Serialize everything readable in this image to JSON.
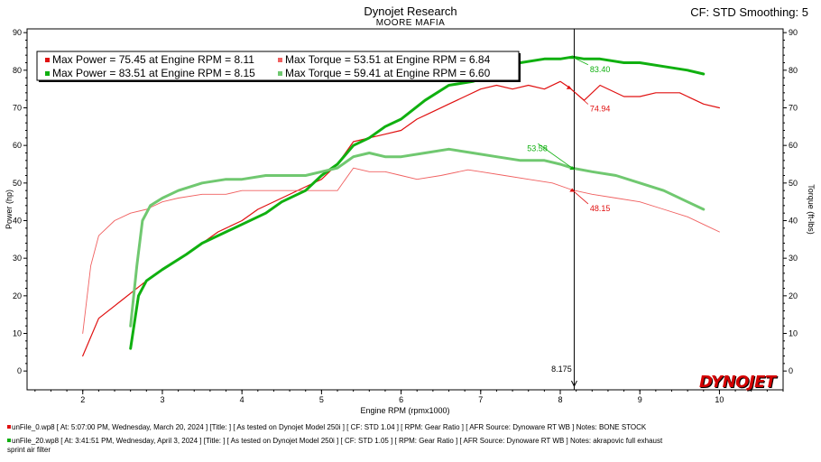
{
  "header": {
    "title": "Dynojet Research",
    "subtitle": "MOORE MAFIA",
    "cf": "CF: STD Smoothing: 5"
  },
  "colors": {
    "run1": "#e01010",
    "run1_torque": "#f06060",
    "run2": "#10b010",
    "run2_torque": "#70c870"
  },
  "chart_data": {
    "type": "line",
    "xlabel": "Engine RPM (rpmx1000)",
    "ylabel_left": "Power (hp)",
    "ylabel_right": "Torque (ft-lbs)",
    "xlim": [
      1.3,
      10.8
    ],
    "ylim": [
      -5,
      91
    ],
    "x_ticks": [
      "2",
      "3",
      "4",
      "5",
      "6",
      "7",
      "8",
      "9",
      "10"
    ],
    "y_ticks": [
      "0",
      "10",
      "20",
      "30",
      "40",
      "50",
      "60",
      "70",
      "80",
      "90"
    ],
    "grid": false,
    "legend": [
      {
        "text": "Max Power = 75.45 at Engine RPM = 8.11",
        "color": "#e01010",
        "bold": false
      },
      {
        "text": "Max Torque = 53.51 at Engine RPM = 6.84",
        "color": "#f06060",
        "bold": false
      },
      {
        "text": "Max Power = 83.51 at Engine RPM = 8.15",
        "color": "#10b010",
        "bold": true
      },
      {
        "text": "Max Torque = 59.41 at Engine RPM = 6.60",
        "color": "#70c870",
        "bold": true
      }
    ],
    "series": [
      {
        "name": "Power",
        "file": "unFile_0.wp8",
        "color": "#e01010",
        "width": 1.2,
        "x": [
          2.0,
          2.2,
          2.5,
          2.8,
          3.0,
          3.3,
          3.5,
          3.7,
          4.0,
          4.2,
          4.5,
          4.8,
          5.0,
          5.2,
          5.4,
          5.6,
          5.8,
          6.0,
          6.2,
          6.4,
          6.6,
          6.8,
          7.0,
          7.2,
          7.4,
          7.6,
          7.8,
          8.0,
          8.11,
          8.3,
          8.5,
          8.8,
          9.0,
          9.2,
          9.5,
          9.8,
          10.0
        ],
        "y": [
          4,
          14,
          19,
          24,
          27,
          31,
          34,
          37,
          40,
          43,
          46,
          49,
          51,
          55,
          61,
          62,
          63,
          64,
          67,
          69,
          71,
          73,
          75,
          76,
          75,
          76,
          75,
          77,
          75.45,
          72,
          76,
          73,
          73,
          74,
          74,
          71,
          70
        ]
      },
      {
        "name": "Torque",
        "file": "unFile_0.wp8",
        "color": "#f06060",
        "width": 0.9,
        "x": [
          2.0,
          2.1,
          2.2,
          2.4,
          2.6,
          2.8,
          3.0,
          3.2,
          3.5,
          3.8,
          4.0,
          4.3,
          4.6,
          4.8,
          5.0,
          5.2,
          5.4,
          5.6,
          5.8,
          6.0,
          6.2,
          6.5,
          6.84,
          7.0,
          7.3,
          7.6,
          7.9,
          8.15,
          8.4,
          8.7,
          9.0,
          9.3,
          9.6,
          9.8,
          10.0
        ],
        "y": [
          10,
          28,
          36,
          40,
          42,
          43,
          45,
          46,
          47,
          47,
          48,
          48,
          48,
          48,
          48,
          48,
          54,
          53,
          53,
          52,
          51,
          52,
          53.51,
          53,
          52,
          51,
          50,
          48.15,
          47,
          46,
          45,
          43,
          41,
          39,
          37
        ]
      },
      {
        "name": "Power",
        "file": "unFile_20.wp8",
        "color": "#10b010",
        "width": 3,
        "x": [
          2.6,
          2.65,
          2.7,
          2.8,
          3.0,
          3.3,
          3.5,
          3.8,
          4.0,
          4.3,
          4.5,
          4.8,
          5.0,
          5.2,
          5.4,
          5.6,
          5.8,
          6.0,
          6.3,
          6.6,
          6.9,
          7.2,
          7.5,
          7.8,
          8.0,
          8.15,
          8.3,
          8.5,
          8.8,
          9.0,
          9.3,
          9.6,
          9.8
        ],
        "y": [
          6,
          13,
          20,
          24,
          27,
          31,
          34,
          37,
          39,
          42,
          45,
          48,
          52,
          55,
          60,
          62,
          65,
          67,
          72,
          76,
          77,
          79,
          82,
          83,
          83,
          83.51,
          83,
          83,
          82,
          82,
          81,
          80,
          79
        ]
      },
      {
        "name": "Torque",
        "file": "unFile_20.wp8",
        "color": "#70c870",
        "width": 3,
        "x": [
          2.6,
          2.68,
          2.75,
          2.85,
          3.0,
          3.2,
          3.5,
          3.8,
          4.0,
          4.3,
          4.5,
          4.8,
          5.0,
          5.2,
          5.4,
          5.6,
          5.8,
          6.0,
          6.3,
          6.6,
          6.9,
          7.2,
          7.5,
          7.8,
          8.0,
          8.15,
          8.4,
          8.7,
          9.0,
          9.3,
          9.6,
          9.8
        ],
        "y": [
          12,
          28,
          40,
          44,
          46,
          48,
          50,
          51,
          51,
          52,
          52,
          52,
          53,
          54,
          57,
          58,
          57,
          57,
          58,
          59,
          58,
          57,
          56,
          56,
          55,
          54,
          53,
          52,
          50,
          48,
          45,
          43
        ]
      }
    ],
    "annotations": [
      {
        "x": 8.15,
        "y": 83.51,
        "text": "83.40",
        "color": "#10b010",
        "tx": 8.35,
        "ty": 80.5
      },
      {
        "x": 8.11,
        "y": 75.45,
        "text": "74.94",
        "color": "#e01010",
        "tx": 8.35,
        "ty": 70.0
      },
      {
        "x": 8.15,
        "y": 54.0,
        "text": "53.58",
        "color": "#10b010",
        "tx": 7.72,
        "ty": 59.5
      },
      {
        "x": 8.15,
        "y": 48.15,
        "text": "48.15",
        "color": "#e01010",
        "tx": 8.35,
        "ty": 43.5
      }
    ],
    "cursor": {
      "x": 8.175,
      "label": "8.175"
    }
  },
  "footer": {
    "run1": "unFile_0.wp8 [ At: 5:07:00 PM, Wednesday, March 20, 2024 ] [Title: ]  [ As tested on Dynojet Model 250i ] [ CF: STD 1.04 ] [ RPM: Gear Ratio ] [ AFR Source: Dynoware RT WB ] Notes: BONE STOCK",
    "run2_line1": "unFile_20.wp8 [ At: 3:41:51 PM, Wednesday, April 3, 2024 ] [Title: ]  [ As tested on Dynojet Model 250i ] [ CF: STD 1.05 ] [ RPM: Gear Ratio ] [ AFR Source: Dynoware RT WB ] Notes: akrapovic full exhaust",
    "run2_line2": "sprint air filter"
  },
  "logo": "DYNOJET"
}
